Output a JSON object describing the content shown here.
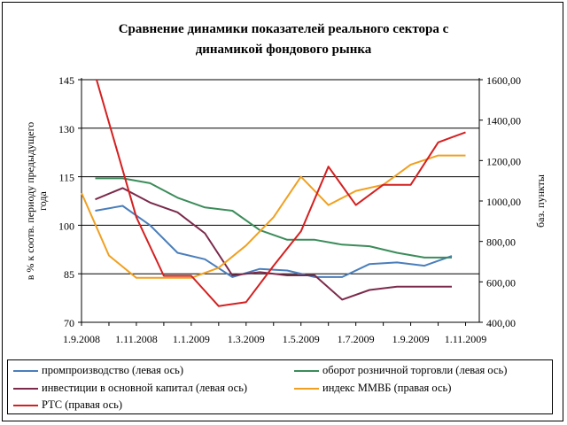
{
  "chart_data": {
    "type": "line",
    "title_line1": "Сравнение динамики показателей реального сектора с",
    "title_line2": "динамикой фондового рынка",
    "ylabel_left_line1": "в % к соотв. периоду предыдущего",
    "ylabel_left_line2": "года",
    "ylabel_right": "баз. пункты",
    "x_labels": [
      "1.9.2008",
      "1.11.2008",
      "1.1.2009",
      "1.3.2009",
      "1.5.2009",
      "1.7.2009",
      "1.9.2009",
      "1.11.2009"
    ],
    "x_range": [
      0,
      14.5
    ],
    "y_left": {
      "min": 70,
      "max": 145,
      "ticks": [
        70,
        85,
        100,
        115,
        130,
        145
      ]
    },
    "y_right": {
      "min": 400,
      "max": 1600,
      "ticks": [
        "400,00",
        "600,00",
        "800,00",
        "1000,00",
        "1200,00",
        "1400,00",
        "1600,00"
      ]
    },
    "gridlines": [
      145,
      130,
      115,
      100,
      85
    ],
    "series": [
      {
        "name": "промпроизводство (левая ось)",
        "axis": "left",
        "color": "#4a7ebb",
        "x": [
          0.5,
          1.5,
          2.5,
          3.5,
          4.5,
          5.5,
          6.5,
          7.5,
          8.5,
          9.5,
          10.5,
          11.5,
          12.5,
          13.5
        ],
        "values": [
          104.5,
          106,
          100,
          91.5,
          89.5,
          84,
          86.5,
          86,
          84,
          84,
          88,
          88.5,
          87.5,
          90.5
        ]
      },
      {
        "name": "оборот розничной торговли (левая ось)",
        "axis": "left",
        "color": "#3b8c5a",
        "x": [
          0.5,
          1.5,
          2.5,
          3.5,
          4.5,
          5.5,
          6.5,
          7.5,
          8.5,
          9.5,
          10.5,
          11.5,
          12.5,
          13.5
        ],
        "values": [
          114.5,
          114.5,
          113,
          108.5,
          105.5,
          104.5,
          98.5,
          95.5,
          95.5,
          94,
          93.5,
          91.5,
          90,
          90
        ]
      },
      {
        "name": "инвестиции в основной капитал (левая ось)",
        "axis": "left",
        "color": "#7b2a4a",
        "x": [
          0.5,
          1.5,
          2.5,
          3.5,
          4.5,
          5.5,
          6.5,
          7.5,
          8.5,
          9.5,
          10.5,
          11.5,
          12.5,
          13.5
        ],
        "values": [
          108,
          111.5,
          107,
          104,
          97.5,
          84.5,
          85.5,
          84.5,
          84.5,
          77,
          80,
          81,
          81,
          81
        ]
      },
      {
        "name": "индекс ММВБ (правая ось)",
        "axis": "right",
        "color": "#f0a020",
        "x": [
          0,
          1,
          2,
          3,
          4,
          5,
          6,
          7,
          8,
          9,
          10,
          11,
          12,
          13,
          14
        ],
        "values": [
          1040,
          730,
          620,
          620,
          620,
          670,
          780,
          920,
          1120,
          980,
          1050,
          1080,
          1180,
          1225,
          1225
        ]
      },
      {
        "name": "РТС (правая ось)",
        "axis": "right",
        "color": "#d42020",
        "x": [
          0.55,
          2,
          3,
          4,
          5,
          6,
          7,
          8,
          9,
          10,
          11,
          12,
          13,
          14
        ],
        "values": [
          1600,
          920,
          630,
          630,
          480,
          500,
          680,
          850,
          1170,
          980,
          1080,
          1080,
          1290,
          1340
        ]
      }
    ]
  }
}
